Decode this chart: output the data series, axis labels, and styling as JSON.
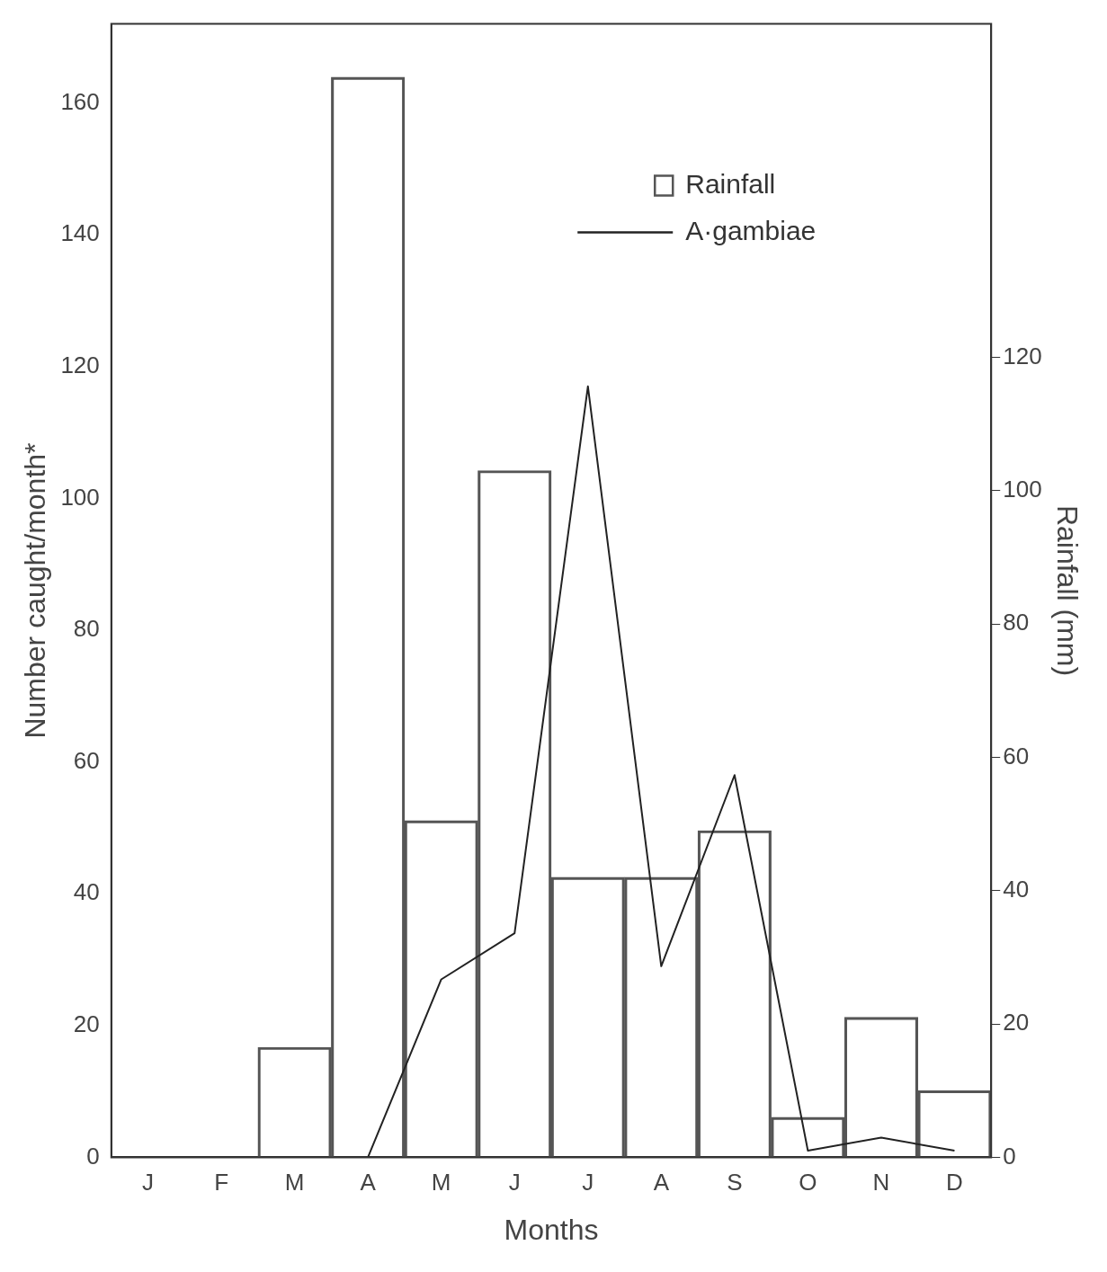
{
  "chart_data": {
    "type": "bar",
    "xlabel": "Months",
    "ylabel": "Number caught/month*",
    "y2label": "Rainfall (mm)",
    "categories": [
      "J",
      "F",
      "M",
      "A",
      "M",
      "J",
      "J",
      "A",
      "S",
      "O",
      "N",
      "D"
    ],
    "series": [
      {
        "name": "Rainfall",
        "axis": "y2",
        "color": "#555555",
        "values": [
          null,
          null,
          16.5,
          162,
          50.5,
          103,
          42,
          42,
          49,
          6,
          21,
          10
        ]
      },
      {
        "name": "A·gambiae",
        "type": "line",
        "axis": "y",
        "color": "#222222",
        "values": [
          null,
          null,
          null,
          0,
          27,
          34,
          117,
          29,
          58,
          1,
          3,
          1
        ]
      }
    ],
    "ylim": [
      0,
      172
    ],
    "yticks": [
      0,
      20,
      40,
      60,
      80,
      100,
      120,
      140,
      160
    ],
    "y2lim": [
      0,
      170
    ],
    "y2ticks": [
      0,
      20,
      40,
      60,
      80,
      100,
      120
    ],
    "grid": false,
    "legend": "top right",
    "marker": "none",
    "line_style": "solid"
  }
}
